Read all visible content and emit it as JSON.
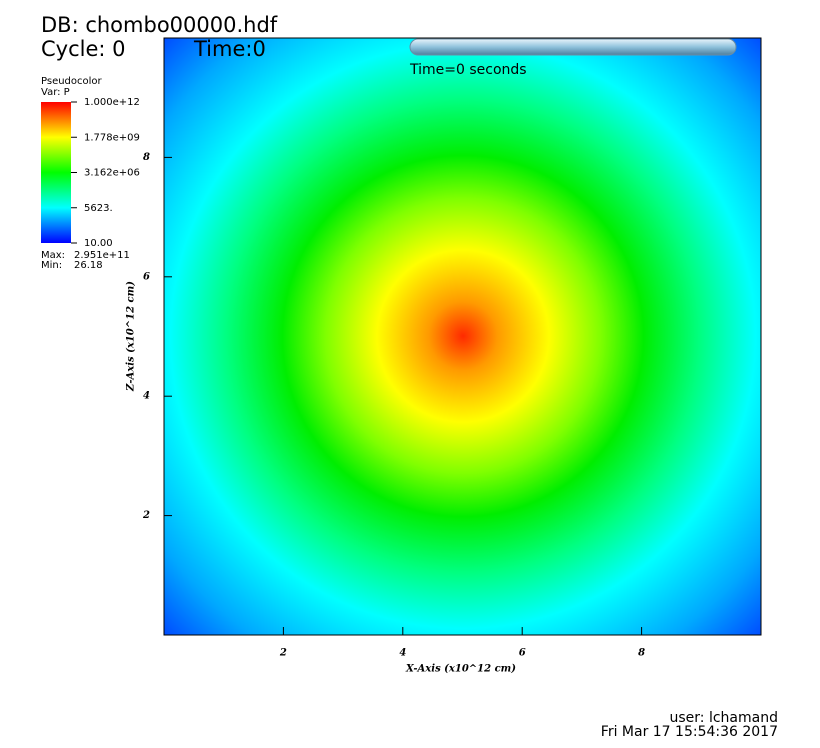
{
  "chart_data": {
    "type": "pseudocolor",
    "database": "DB: chombo00000.hdf",
    "cycle": "Cycle: 0",
    "time": "Time:0",
    "slider_text": "Time=0 seconds",
    "legend": {
      "title": "Pseudocolor",
      "variable": "Var: P",
      "log": true,
      "lim": [
        10,
        1000000000000
      ],
      "ticks": [
        {
          "value": 1000000000000,
          "label": "1.000e+12"
        },
        {
          "value": 1778000000,
          "label": "1.778e+09"
        },
        {
          "value": 3162000,
          "label": "3.162e+06"
        },
        {
          "value": 5623,
          "label": "5623."
        },
        {
          "value": 10,
          "label": "10.00"
        }
      ],
      "colors": [
        "#0000ff",
        "#00ffff",
        "#00ff00",
        "#ffff00",
        "#ff0000"
      ]
    },
    "extrema": {
      "names": [
        "Max:",
        "Min:"
      ],
      "values": [
        295100000000,
        26.18
      ],
      "value_labels": [
        "2.951e+11",
        "26.18"
      ]
    },
    "x_label": "X-Axis (x10^12 cm)",
    "y_label": "Z-Axis (x10^12 cm)",
    "xlim": [
      0,
      10
    ],
    "ylim": [
      0,
      10
    ],
    "xticks": [
      2,
      4,
      6,
      8
    ],
    "yticks": [
      2,
      4,
      6,
      8
    ],
    "user": "user: lchamand",
    "date": "Fri Mar 17 15:54:36 2017"
  }
}
